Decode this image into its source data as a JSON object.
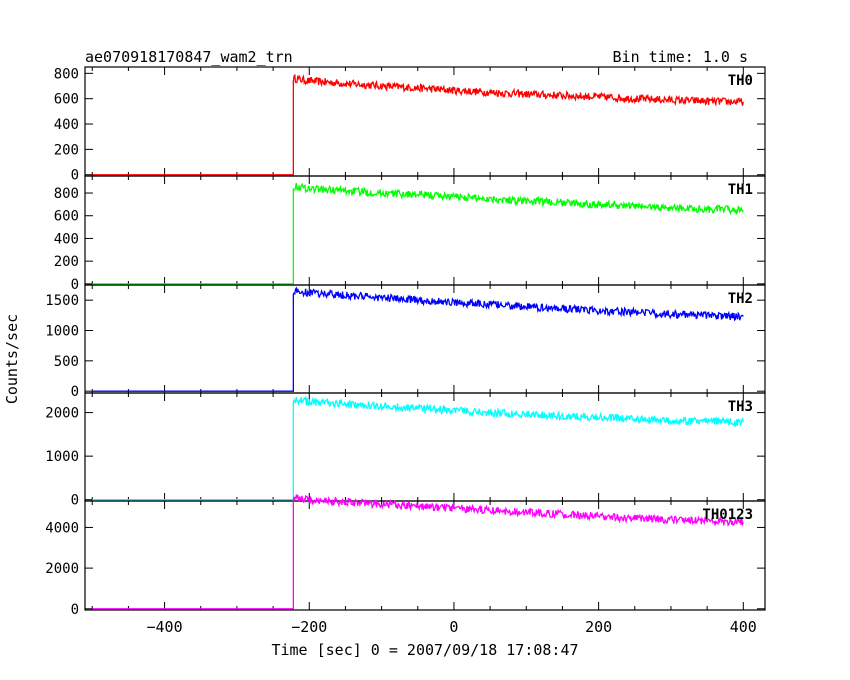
{
  "header": {
    "title": "ae070918170847_wam2_trn",
    "bin_time": "Bin time: 1.0 s"
  },
  "chart_data": {
    "type": "line",
    "xlabel": "Time [sec] 0 = 2007/09/18 17:08:47",
    "ylabel": "Counts/sec",
    "xlim": [
      -510,
      430
    ],
    "x_ticks": [
      -400,
      -200,
      0,
      200,
      400
    ],
    "x_tick_labels": [
      "−400",
      "−200",
      "0",
      "200",
      "400"
    ],
    "grid": false,
    "panels": [
      {
        "name": "TH0",
        "color": "#ff0000",
        "ylim": [
          -10,
          850
        ],
        "y_ticks": [
          0,
          200,
          400,
          600,
          800
        ],
        "x": [
          -500,
          -222,
          -222,
          -200,
          -150,
          -100,
          -50,
          0,
          50,
          100,
          150,
          200,
          250,
          300,
          350,
          400
        ],
        "y": [
          0,
          0,
          760,
          740,
          720,
          700,
          685,
          665,
          650,
          635,
          625,
          615,
          600,
          590,
          580,
          575
        ]
      },
      {
        "name": "TH1",
        "color": "#00ff00",
        "ylim": [
          -10,
          950
        ],
        "y_ticks": [
          0,
          200,
          400,
          600,
          800
        ],
        "x": [
          -500,
          -222,
          -222,
          -200,
          -150,
          -100,
          -50,
          0,
          50,
          100,
          150,
          200,
          250,
          300,
          350,
          400
        ],
        "y": [
          0,
          0,
          860,
          840,
          820,
          800,
          785,
          770,
          750,
          730,
          715,
          700,
          685,
          670,
          660,
          650
        ]
      },
      {
        "name": "TH2",
        "color": "#0000ff",
        "ylim": [
          -30,
          1750
        ],
        "y_ticks": [
          0,
          500,
          1000,
          1500
        ],
        "x": [
          -500,
          -222,
          -222,
          -200,
          -150,
          -100,
          -50,
          0,
          50,
          100,
          150,
          200,
          250,
          300,
          350,
          400
        ],
        "y": [
          0,
          0,
          1650,
          1620,
          1580,
          1540,
          1500,
          1460,
          1430,
          1390,
          1360,
          1330,
          1300,
          1270,
          1250,
          1230
        ]
      },
      {
        "name": "TH3",
        "color": "#00ffff",
        "ylim": [
          -30,
          2450
        ],
        "y_ticks": [
          0,
          1000,
          2000
        ],
        "x": [
          -500,
          -222,
          -222,
          -200,
          -150,
          -100,
          -50,
          0,
          50,
          100,
          150,
          200,
          250,
          300,
          350,
          400
        ],
        "y": [
          0,
          0,
          2300,
          2250,
          2200,
          2150,
          2100,
          2050,
          2000,
          1960,
          1920,
          1890,
          1850,
          1820,
          1800,
          1780
        ]
      },
      {
        "name": "TH0123",
        "color": "#ff00ff",
        "ylim": [
          -60,
          5300
        ],
        "y_ticks": [
          0,
          2000,
          4000
        ],
        "x": [
          -500,
          -222,
          -222,
          -200,
          -150,
          -100,
          -50,
          0,
          50,
          100,
          150,
          200,
          250,
          300,
          350,
          400
        ],
        "y": [
          0,
          0,
          5450,
          5350,
          5250,
          5150,
          5050,
          4950,
          4850,
          4750,
          4650,
          4550,
          4450,
          4380,
          4300,
          4250
        ]
      }
    ]
  }
}
